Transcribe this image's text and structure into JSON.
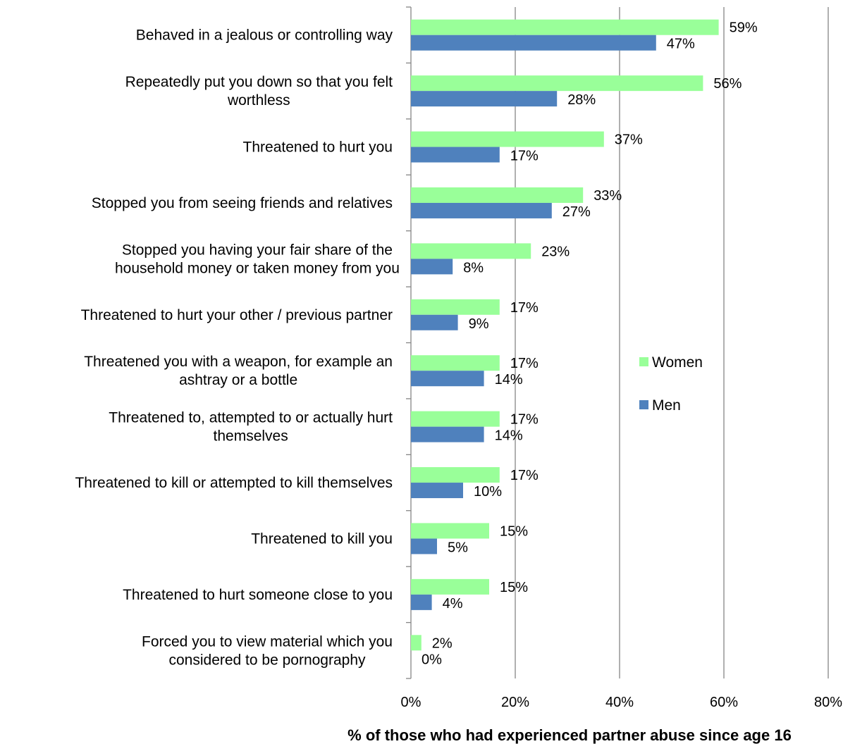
{
  "chart_data": {
    "type": "bar",
    "orientation": "horizontal",
    "categories": [
      [
        "Behaved in a jealous or controlling way"
      ],
      [
        "Repeatedly put you down so that you felt",
        "worthless"
      ],
      [
        "Threatened to hurt you"
      ],
      [
        "Stopped you from seeing friends and relatives"
      ],
      [
        "Stopped you having your fair share of the",
        "household money or taken money from you"
      ],
      [
        "Threatened to hurt your other / previous partner"
      ],
      [
        "Threatened you with a weapon, for example an",
        "ashtray or a bottle"
      ],
      [
        "Threatened to, attempted to or actually hurt",
        "themselves"
      ],
      [
        "Threatened to kill or attempted to kill themselves"
      ],
      [
        "Threatened to kill you"
      ],
      [
        "Threatened to hurt someone close to you"
      ],
      [
        "Forced you to view material which you",
        "considered to be pornography"
      ]
    ],
    "series": [
      {
        "name": "Women",
        "color": "#99ff99",
        "values": [
          59,
          56,
          37,
          33,
          23,
          17,
          17,
          17,
          17,
          15,
          15,
          2
        ]
      },
      {
        "name": "Men",
        "color": "#4f81bd",
        "values": [
          47,
          28,
          17,
          27,
          8,
          9,
          14,
          14,
          10,
          5,
          4,
          0
        ]
      }
    ],
    "xlim": [
      0,
      80
    ],
    "xticks": [
      0,
      20,
      40,
      60,
      80
    ],
    "tick_suffix": "%",
    "xlabel": "% of those who had experienced partner abuse since age 16",
    "grid": "vertical",
    "legend": "right"
  }
}
